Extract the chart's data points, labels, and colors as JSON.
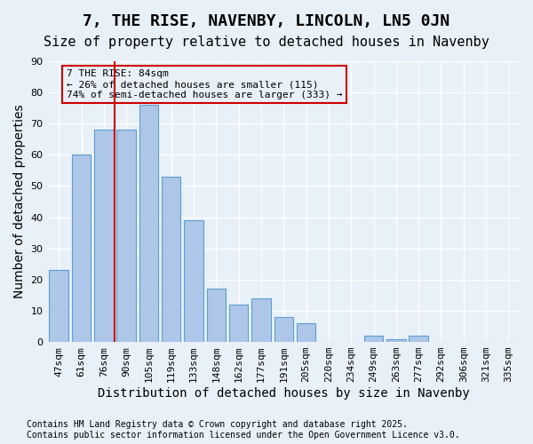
{
  "title": "7, THE RISE, NAVENBY, LINCOLN, LN5 0JN",
  "subtitle": "Size of property relative to detached houses in Navenby",
  "xlabel": "Distribution of detached houses by size in Navenby",
  "ylabel": "Number of detached properties",
  "bar_labels": [
    "47sqm",
    "61sqm",
    "76sqm",
    "90sqm",
    "105sqm",
    "119sqm",
    "133sqm",
    "148sqm",
    "162sqm",
    "177sqm",
    "191sqm",
    "205sqm",
    "220sqm",
    "234sqm",
    "249sqm",
    "263sqm",
    "277sqm",
    "292sqm",
    "306sqm",
    "321sqm",
    "335sqm"
  ],
  "bar_values": [
    23,
    60,
    68,
    68,
    76,
    53,
    39,
    17,
    12,
    14,
    8,
    6,
    0,
    0,
    2,
    1,
    2,
    0,
    0,
    0,
    0
  ],
  "bar_color": "#aec6e8",
  "bar_edge_color": "#5a9fd4",
  "background_color": "#e8f0f8",
  "grid_color": "#ffffff",
  "vline_x_index": 3,
  "vline_color": "#cc0000",
  "annotation_text": "7 THE RISE: 84sqm\n← 26% of detached houses are smaller (115)\n74% of semi-detached houses are larger (333) →",
  "annotation_box_color": "#cc0000",
  "ylim": [
    0,
    90
  ],
  "yticks": [
    0,
    10,
    20,
    30,
    40,
    50,
    60,
    70,
    80,
    90
  ],
  "footer_text": "Contains HM Land Registry data © Crown copyright and database right 2025.\nContains public sector information licensed under the Open Government Licence v3.0.",
  "title_fontsize": 13,
  "subtitle_fontsize": 11,
  "xlabel_fontsize": 10,
  "ylabel_fontsize": 10,
  "tick_fontsize": 8,
  "annotation_fontsize": 8,
  "footer_fontsize": 7
}
